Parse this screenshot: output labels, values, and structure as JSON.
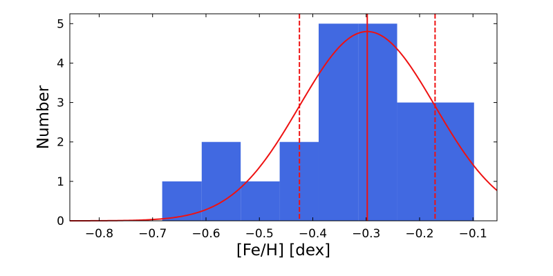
{
  "chart_data": {
    "type": "bar",
    "title": "",
    "xlabel": "[Fe/H] [dex]",
    "ylabel": "Number",
    "xlim": [
      -0.855,
      -0.055
    ],
    "ylim": [
      0,
      5.25
    ],
    "grid": false,
    "x_ticks": [
      -0.8,
      -0.7,
      -0.6,
      -0.5,
      -0.4,
      -0.3,
      -0.2,
      -0.1
    ],
    "x_tick_labels": [
      "−0.8",
      "−0.7",
      "−0.6",
      "−0.5",
      "−0.4",
      "−0.3",
      "−0.2",
      "−0.1"
    ],
    "y_ticks": [
      0,
      1,
      2,
      3,
      4,
      5
    ],
    "y_tick_labels": [
      "0",
      "1",
      "2",
      "3",
      "4",
      "5"
    ],
    "bins": [
      {
        "x0": -0.682,
        "x1": -0.608,
        "count": 1
      },
      {
        "x0": -0.608,
        "x1": -0.535,
        "count": 2
      },
      {
        "x0": -0.535,
        "x1": -0.462,
        "count": 1
      },
      {
        "x0": -0.462,
        "x1": -0.389,
        "count": 2
      },
      {
        "x0": -0.389,
        "x1": -0.315,
        "count": 5
      },
      {
        "x0": -0.315,
        "x1": -0.242,
        "count": 5
      },
      {
        "x0": -0.242,
        "x1": -0.098,
        "count": 3
      }
    ],
    "bar_color": "#4169e1",
    "gaussian_fit": {
      "mean": -0.298,
      "sigma": 0.127,
      "amplitude": 4.8,
      "color": "#ee1111"
    },
    "vertical_lines": [
      {
        "x": -0.298,
        "style": "solid",
        "color": "#ee1111"
      },
      {
        "x": -0.425,
        "style": "dashed",
        "color": "#ee1111"
      },
      {
        "x": -0.171,
        "style": "dashed",
        "color": "#ee1111"
      }
    ]
  }
}
